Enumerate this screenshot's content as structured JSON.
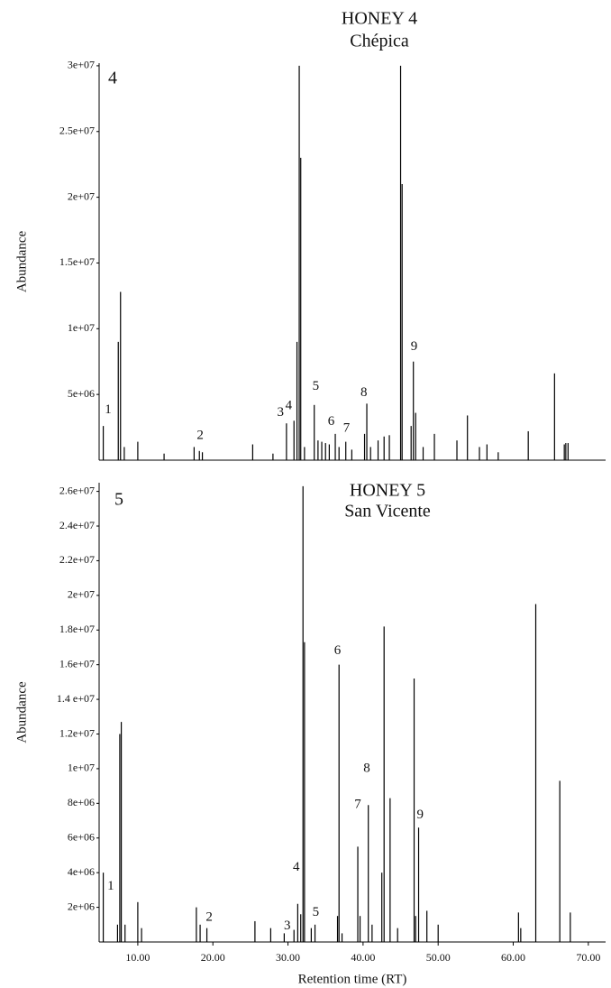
{
  "chart_data": [
    {
      "type": "stem",
      "title": "HONEY 4",
      "subtitle": "Chépica",
      "panel_label": "4",
      "y_label": "Abundance",
      "color": "#000000",
      "xlim": [
        4.85,
        72.3
      ],
      "ylim": [
        0,
        30200000
      ],
      "yticks": [
        {
          "value": 5000000,
          "label": "5e+06"
        },
        {
          "value": 10000000,
          "label": "1e+07"
        },
        {
          "value": 15000000,
          "label": "1.5e+07"
        },
        {
          "value": 20000000,
          "label": "2e+07"
        },
        {
          "value": 25000000,
          "label": "2.5e+07"
        },
        {
          "value": 30000000,
          "label": "3e+07"
        }
      ],
      "x": [
        5.4,
        7.4,
        7.7,
        8.2,
        10,
        13.5,
        17.5,
        18.2,
        18.6,
        25.3,
        28,
        29.8,
        30.8,
        31.2,
        31.5,
        31.7,
        32.2,
        33.5,
        34,
        34.5,
        35,
        35.5,
        36.3,
        36.8,
        37.7,
        38.5,
        40.2,
        40.5,
        41,
        42,
        42.8,
        43.5,
        45,
        45.2,
        46.4,
        46.7,
        47,
        48,
        49.5,
        52.5,
        53.9,
        55.5,
        56.5,
        58,
        62,
        65.5,
        66.8,
        67,
        67.3
      ],
      "values": [
        2600000,
        9000000,
        12800000,
        1000000,
        1400000,
        500000,
        1000000,
        700000,
        600000,
        1200000,
        500000,
        2800000,
        3000000,
        9000000,
        30000000,
        23000000,
        1000000,
        4200000,
        1500000,
        1400000,
        1300000,
        1200000,
        2000000,
        1000000,
        1400000,
        800000,
        2000000,
        4300000,
        1000000,
        1500000,
        1800000,
        1900000,
        30000000,
        21000000,
        2600000,
        7500000,
        3600000,
        1000000,
        2000000,
        1500000,
        3400000,
        1000000,
        1200000,
        600000,
        2200000,
        6600000,
        1200000,
        1300000,
        1300000
      ],
      "peak_labels": [
        {
          "label": "1",
          "x": 6.05,
          "y": 3800000
        },
        {
          "label": "2",
          "x": 18.3,
          "y": 1850000
        },
        {
          "label": "3",
          "x": 29.0,
          "y": 3600000
        },
        {
          "label": "4",
          "x": 30.1,
          "y": 4100000
        },
        {
          "label": "5",
          "x": 33.7,
          "y": 5600000
        },
        {
          "label": "6",
          "x": 35.75,
          "y": 2900000
        },
        {
          "label": "7",
          "x": 37.8,
          "y": 2400000
        },
        {
          "label": "8",
          "x": 40.1,
          "y": 5100000
        },
        {
          "label": "9",
          "x": 46.8,
          "y": 8600000
        }
      ]
    },
    {
      "type": "stem",
      "title": "HONEY 5",
      "subtitle": "San Vicente",
      "panel_label": "5",
      "y_label": "Abundance",
      "x_label": "Retention time (RT)",
      "color": "#000000",
      "xlim": [
        4.85,
        72.3
      ],
      "ylim": [
        0,
        26500000
      ],
      "xticks": [
        {
          "value": 10,
          "label": "10.00"
        },
        {
          "value": 20,
          "label": "20.00"
        },
        {
          "value": 30,
          "label": "30.00"
        },
        {
          "value": 40,
          "label": "40.00"
        },
        {
          "value": 50,
          "label": "50.00"
        },
        {
          "value": 60,
          "label": "60.00"
        },
        {
          "value": 70,
          "label": "70.00"
        }
      ],
      "yticks": [
        {
          "value": 2000000,
          "label": "2e+06"
        },
        {
          "value": 4000000,
          "label": "4e+06"
        },
        {
          "value": 6000000,
          "label": "6e+06"
        },
        {
          "value": 8000000,
          "label": "8e+06"
        },
        {
          "value": 10000000,
          "label": "1e+07"
        },
        {
          "value": 12000000,
          "label": "1.2e+07"
        },
        {
          "value": 14000000,
          "label": "1.4 e+07"
        },
        {
          "value": 16000000,
          "label": "1.6e+07"
        },
        {
          "value": 18000000,
          "label": "1.8e+07"
        },
        {
          "value": 20000000,
          "label": "2e+07"
        },
        {
          "value": 22000000,
          "label": "2.2e+07"
        },
        {
          "value": 24000000,
          "label": "2.4e+07"
        },
        {
          "value": 26000000,
          "label": "2.6e+07"
        }
      ],
      "x": [
        5.4,
        7.3,
        7.6,
        7.8,
        8.3,
        10,
        10.5,
        17.8,
        18.3,
        19.2,
        25.6,
        27.7,
        29.5,
        30.8,
        31.3,
        31.7,
        32,
        32.2,
        33.1,
        33.6,
        36.6,
        36.8,
        37.2,
        39.3,
        39.6,
        40.7,
        41.2,
        42.5,
        42.8,
        43.6,
        44.6,
        46.8,
        47,
        47.4,
        48.5,
        50,
        60.7,
        61,
        63,
        66.2,
        67.6
      ],
      "values": [
        4000000,
        1000000,
        12000000,
        12700000,
        1000000,
        2300000,
        800000,
        2000000,
        1000000,
        800000,
        1200000,
        800000,
        500000,
        700000,
        2200000,
        1600000,
        26300000,
        17300000,
        800000,
        1000000,
        1500000,
        16000000,
        500000,
        5500000,
        1500000,
        7900000,
        1000000,
        4000000,
        18200000,
        8300000,
        800000,
        15200000,
        1500000,
        6600000,
        1800000,
        1000000,
        1700000,
        800000,
        19500000,
        9300000,
        1700000
      ],
      "peak_labels": [
        {
          "label": "1",
          "x": 6.4,
          "y": 3200000
        },
        {
          "label": "2",
          "x": 19.5,
          "y": 1400000
        },
        {
          "label": "3",
          "x": 29.9,
          "y": 900000
        },
        {
          "label": "4",
          "x": 31.1,
          "y": 4300000
        },
        {
          "label": "5",
          "x": 33.7,
          "y": 1700000
        },
        {
          "label": "6",
          "x": 36.6,
          "y": 16800000
        },
        {
          "label": "7",
          "x": 39.3,
          "y": 7900000
        },
        {
          "label": "8",
          "x": 40.5,
          "y": 10000000
        },
        {
          "label": "9",
          "x": 47.6,
          "y": 7300000
        }
      ]
    }
  ]
}
